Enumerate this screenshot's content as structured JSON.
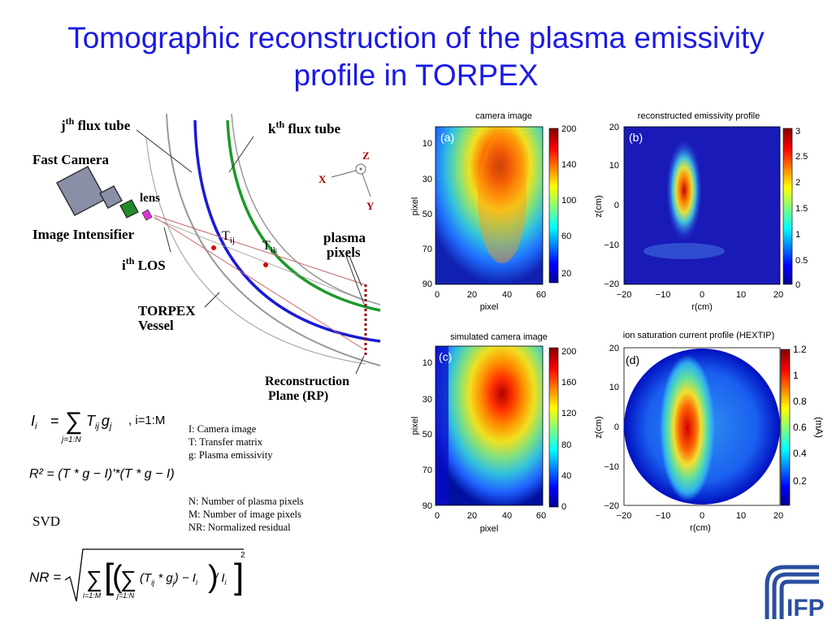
{
  "slide": {
    "title_line1": "Tomographic reconstruction of the plasma emissivity",
    "title_line2": "profile in TORPEX"
  },
  "diagram": {
    "jth_flux_tube": "j",
    "jth_sup": "th",
    "jth_rest": " flux tube",
    "kth_flux_tube": "k",
    "kth_sup": "th",
    "kth_rest": " flux tube",
    "fast_camera": "Fast Camera",
    "lens": "lens",
    "image_intensifier": "Image Intensifier",
    "ith_los": "i",
    "ith_sup": "th",
    "ith_rest": " LOS",
    "t_ij": "T",
    "t_ij_sub": "ij",
    "t_ik": "T",
    "t_ik_sub": "ik",
    "torpex_vessel_1": "TORPEX",
    "torpex_vessel_2": "Vessel",
    "plasma_pixels_1": "plasma",
    "plasma_pixels_2": "pixels",
    "reconstruction_plane_1": "Reconstruction",
    "reconstruction_plane_2": "Plane (RP)",
    "axis_z": "Z",
    "axis_x": "X",
    "axis_y": "Y"
  },
  "equations": {
    "eq1_lhs": "I",
    "eq1_lhs_sub": "i",
    "eq1_rhs": "T",
    "eq1_rhs_sub": "ij",
    "eq1_g": "g",
    "eq1_g_sub": "j",
    "eq1_sum_sub": "j=1:N",
    "eq1_range": ", i=1:M",
    "eq2": "R² = (T * g − I)'*(T * g − I)",
    "svd": "SVD",
    "nr_lhs": "NR =",
    "nr_outer_sub": "i=1:M",
    "nr_inner_sub": "j=1:N",
    "nr_body": "(T",
    "nr_body_sub": "ij",
    "nr_body2": " * g",
    "nr_body2_sub": "j",
    "nr_body3": ") − I",
    "nr_body3_sub": "i",
    "nr_body4": " / I",
    "nr_body4_sub": "i",
    "nr_exp": "2"
  },
  "legend": {
    "line1": "I: Camera image",
    "line2": "T: Transfer matrix",
    "line3": "g: Plasma emissivity",
    "line4": "N: Number of plasma pixels",
    "line5": "M: Number of image pixels",
    "line6": "NR: Normalized residual"
  },
  "panels": {
    "a": {
      "title": "camera image",
      "label": "(a)",
      "xlabel": "pixel",
      "ylabel": "pixel",
      "xticks": [
        "0",
        "20",
        "40",
        "60"
      ],
      "yticks": [
        "10",
        "30",
        "50",
        "70",
        "90"
      ],
      "cbar_ticks": [
        "200",
        "140",
        "100",
        "60",
        "20"
      ]
    },
    "b": {
      "title": "reconstructed emissivity profile",
      "label": "(b)",
      "xlabel": "r(cm)",
      "ylabel": "z(cm)",
      "xticks": [
        "−20",
        "−10",
        "0",
        "10",
        "20"
      ],
      "yticks": [
        "20",
        "10",
        "0",
        "−10",
        "−20"
      ],
      "cbar_ticks": [
        "3",
        "2.5",
        "2",
        "1.5",
        "1",
        "0.5",
        "0"
      ]
    },
    "c": {
      "title": "simulated camera image",
      "label": "(c)",
      "xlabel": "pixel",
      "ylabel": "pixel",
      "xticks": [
        "0",
        "20",
        "40",
        "60"
      ],
      "yticks": [
        "10",
        "30",
        "50",
        "70",
        "90"
      ],
      "cbar_ticks": [
        "200",
        "160",
        "120",
        "80",
        "40",
        "0"
      ]
    },
    "d": {
      "title": "ion saturation current profile (HEXTIP)",
      "label": "(d)",
      "xlabel": "r(cm)",
      "ylabel": "z(cm)",
      "xticks": [
        "−20",
        "−10",
        "0",
        "10",
        "20"
      ],
      "yticks": [
        "20",
        "10",
        "0",
        "−10",
        "−20"
      ],
      "cbar_ticks": [
        "1.2",
        "1",
        "0.8",
        "0.6",
        "0.4",
        "0.2"
      ],
      "cbar_unit": "(mA)"
    }
  },
  "logo": {
    "text": "IFP"
  }
}
